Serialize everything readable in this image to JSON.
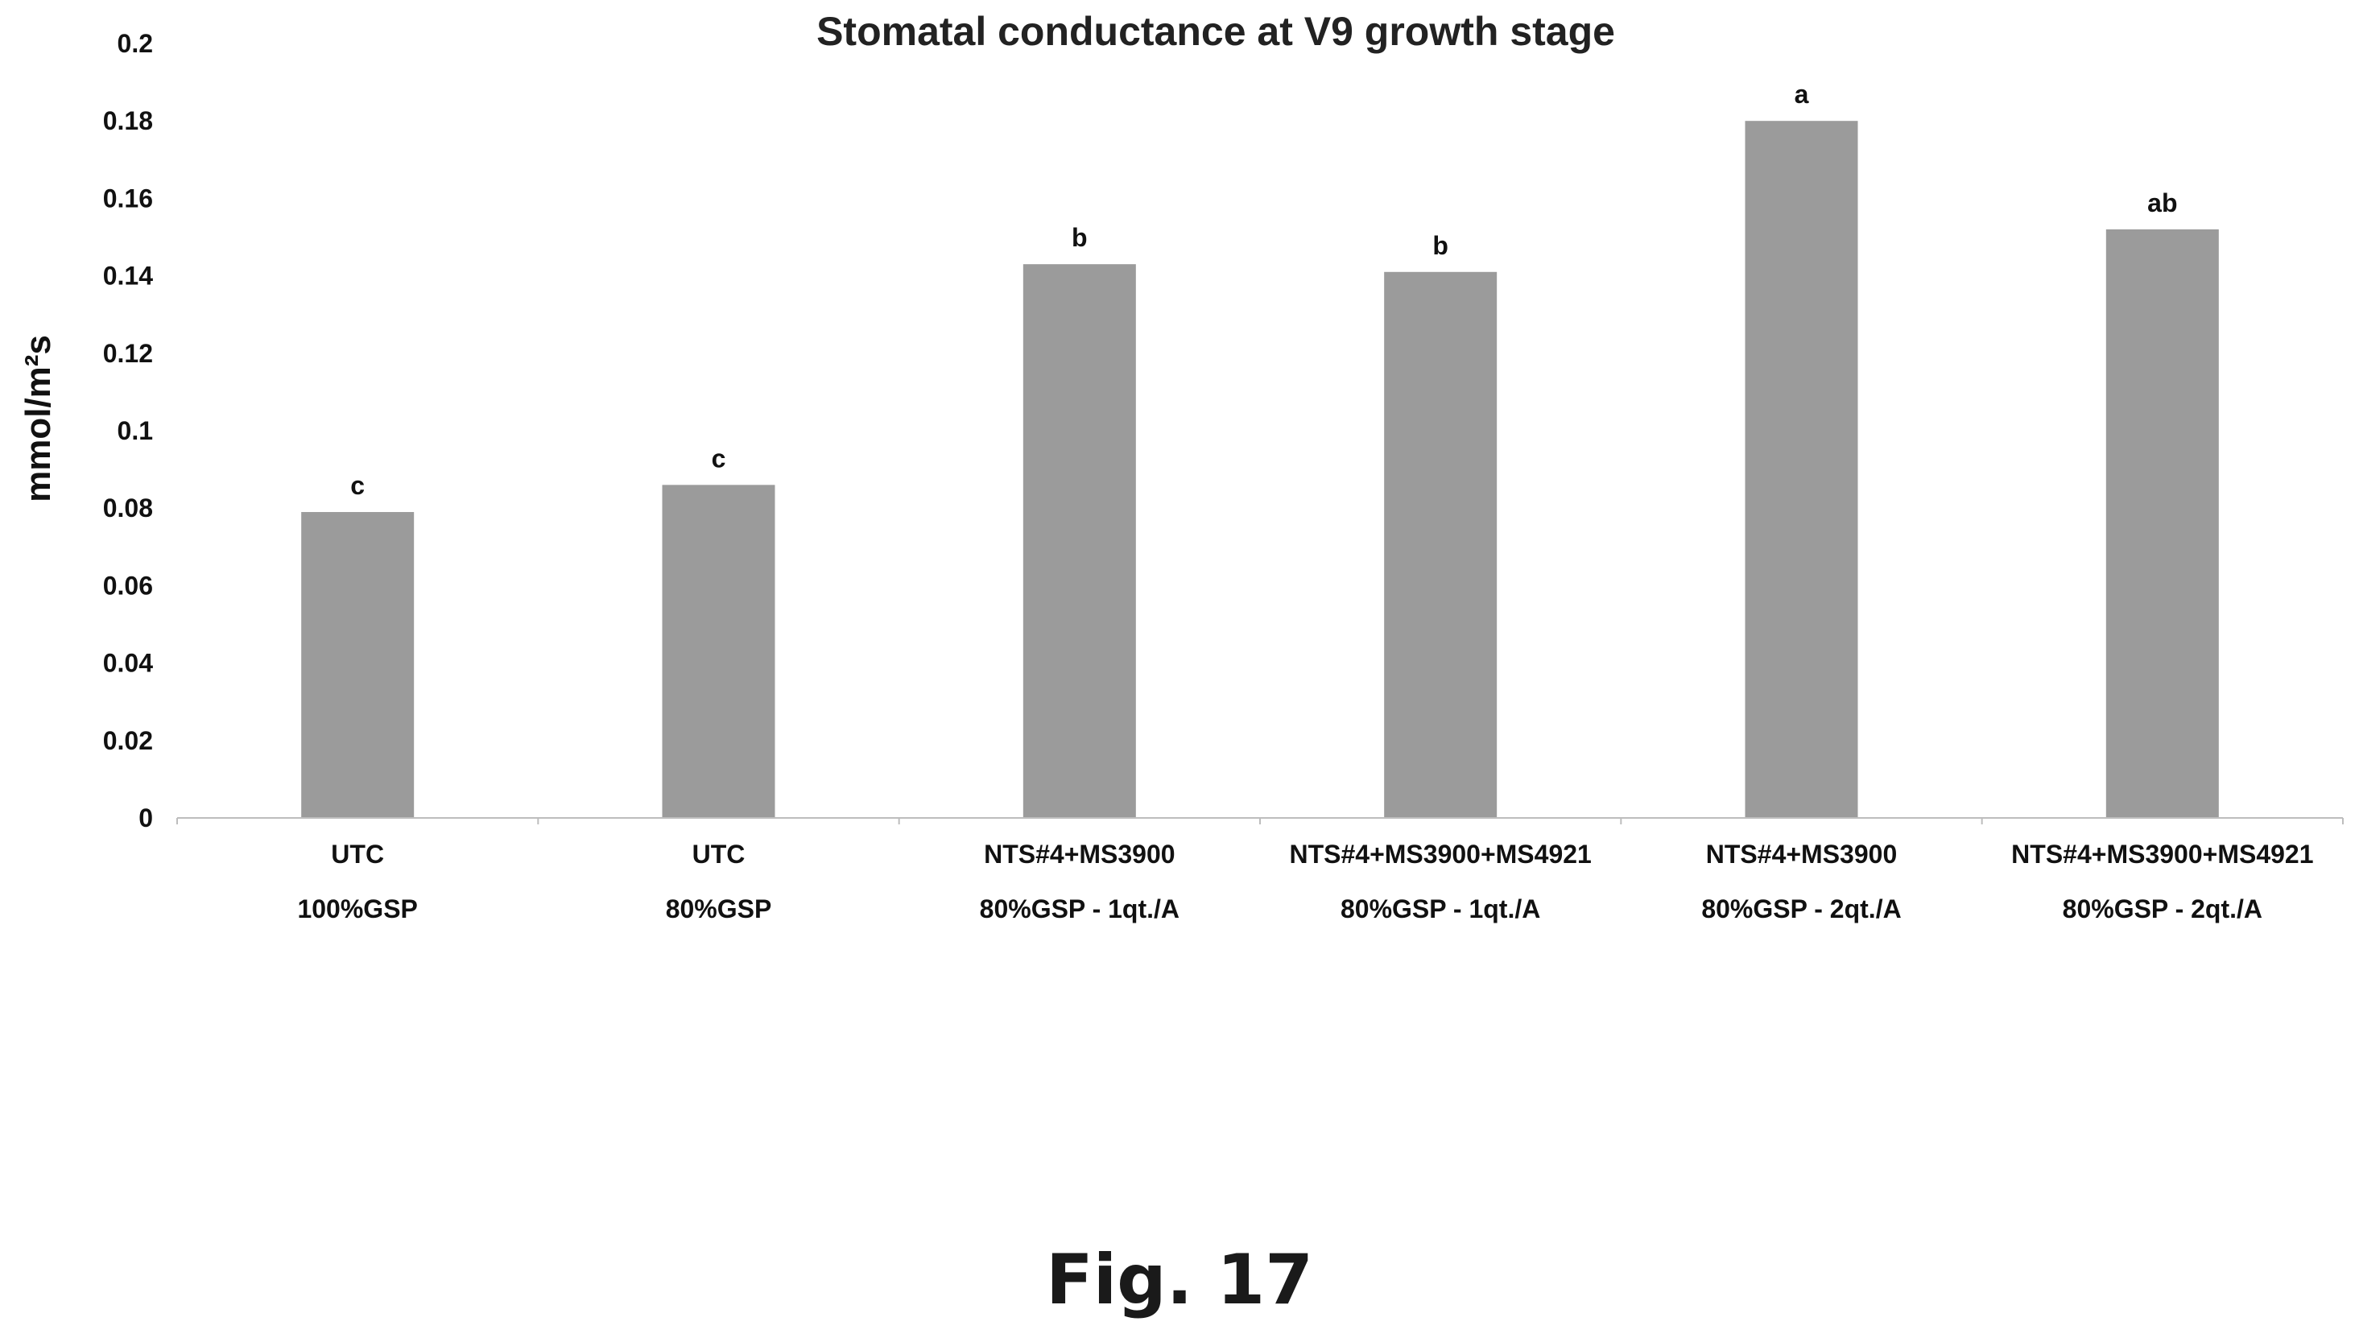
{
  "figure": {
    "caption": "Fig. 17"
  },
  "colors": {
    "bar_fill": "#9b9b9b",
    "axis_line": "#bdbdbd",
    "text": "#111111"
  },
  "chart_data": {
    "type": "bar",
    "title": "Stomatal conductance at V9 growth stage",
    "ylabel": "mmol/m²s",
    "xlabel": "",
    "ylim": [
      0,
      0.2
    ],
    "yticks": [
      "0",
      "0.02",
      "0.04",
      "0.06",
      "0.08",
      "0.1",
      "0.12",
      "0.14",
      "0.16",
      "0.18",
      "0.2"
    ],
    "ytick_values": [
      0,
      0.02,
      0.04,
      0.06,
      0.08,
      0.1,
      0.12,
      0.14,
      0.16,
      0.18,
      0.2
    ],
    "grid": false,
    "legend": "none",
    "categories": [
      [
        "UTC",
        "100%GSP"
      ],
      [
        "UTC",
        "80%GSP"
      ],
      [
        "NTS#4+MS3900",
        "80%GSP - 1qt./A"
      ],
      [
        "NTS#4+MS3900+MS4921",
        "80%GSP - 1qt./A"
      ],
      [
        "NTS#4+MS3900",
        "80%GSP - 2qt./A"
      ],
      [
        "NTS#4+MS3900+MS4921",
        "80%GSP - 2qt./A"
      ]
    ],
    "values": [
      0.079,
      0.086,
      0.143,
      0.141,
      0.18,
      0.152
    ],
    "significance_letters": [
      "c",
      "c",
      "b",
      "b",
      "a",
      "ab"
    ]
  }
}
